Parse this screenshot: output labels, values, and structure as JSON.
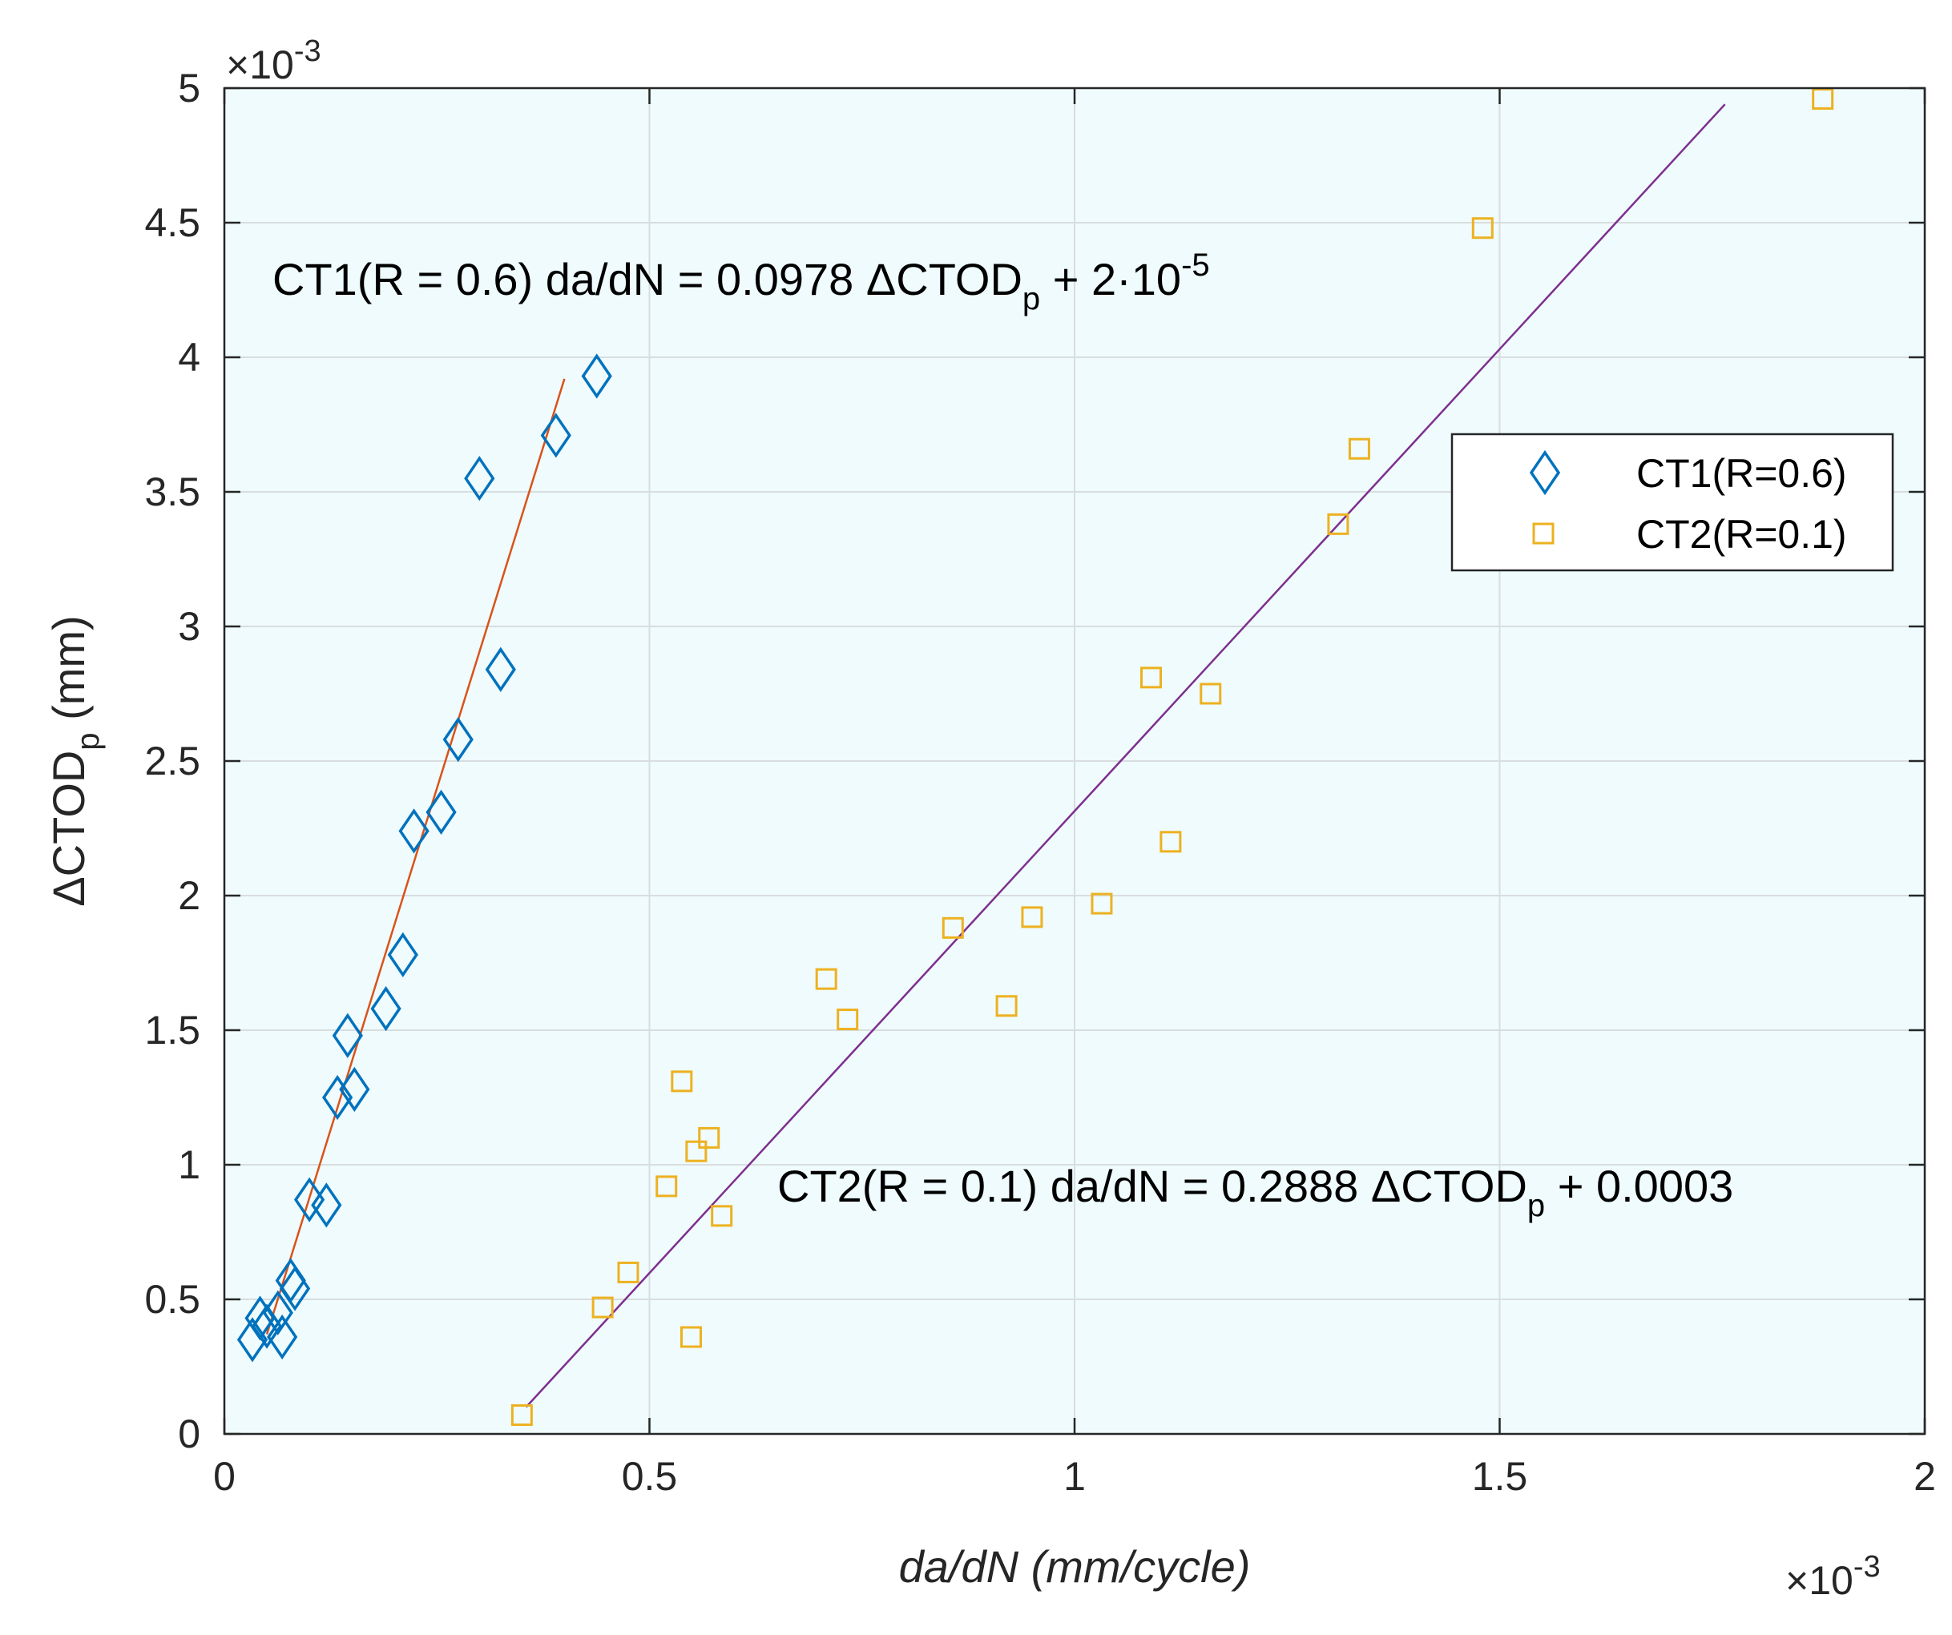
{
  "chart_data": {
    "type": "scatter",
    "title": "",
    "xlabel": "da/dN (mm/cycle)",
    "ylabel": "ΔCTOD",
    "ylabel_sub": "p",
    "ylabel_unit": " (mm)",
    "x_multiplier": "×10",
    "x_multiplier_exp": "-3",
    "y_multiplier": "×10",
    "y_multiplier_exp": "-3",
    "xlim": [
      0,
      2
    ],
    "ylim": [
      0,
      5
    ],
    "xticks": [
      0,
      0.5,
      1,
      1.5,
      2
    ],
    "xtick_labels": [
      "0",
      "0.5",
      "1",
      "1.5",
      "2"
    ],
    "yticks": [
      0,
      0.5,
      1,
      1.5,
      2,
      2.5,
      3,
      3.5,
      4,
      4.5,
      5
    ],
    "ytick_labels": [
      "0",
      "0.5",
      "1",
      "1.5",
      "2",
      "2.5",
      "3",
      "3.5",
      "4",
      "4.5",
      "5"
    ],
    "grid": true,
    "legend_position": "top-right",
    "colors": {
      "background": "#effbfd",
      "ct1": "#0072bd",
      "ct2": "#edb120",
      "fit1": "#d95319",
      "fit2": "#7e2f8e",
      "grid": "#d9dde0",
      "axis": "#262626"
    },
    "series": [
      {
        "name": "CT1(R=0.6)",
        "marker": "diamond",
        "x": [
          0.033,
          0.042,
          0.05,
          0.063,
          0.068,
          0.078,
          0.083,
          0.1,
          0.12,
          0.133,
          0.145,
          0.153,
          0.19,
          0.21,
          0.223,
          0.255,
          0.275,
          0.3,
          0.325,
          0.39,
          0.438
        ],
        "y": [
          0.35,
          0.43,
          0.4,
          0.45,
          0.36,
          0.57,
          0.54,
          0.87,
          0.85,
          1.25,
          1.48,
          1.28,
          1.58,
          1.78,
          2.24,
          2.31,
          2.58,
          3.55,
          2.84,
          3.71,
          3.93
        ]
      },
      {
        "name": "CT2(R=0.1)",
        "marker": "square",
        "x": [
          0.35,
          0.445,
          0.475,
          0.52,
          0.538,
          0.549,
          0.555,
          0.57,
          0.585,
          0.708,
          0.733,
          0.857,
          0.92,
          0.95,
          1.032,
          1.09,
          1.113,
          1.16,
          1.31,
          1.335,
          1.48,
          1.88
        ],
        "y": [
          0.07,
          0.47,
          0.6,
          0.92,
          1.31,
          0.36,
          1.05,
          1.1,
          0.81,
          1.69,
          1.54,
          1.88,
          1.59,
          1.92,
          1.97,
          2.81,
          2.2,
          2.75,
          3.38,
          3.66,
          4.48,
          4.96
        ]
      }
    ],
    "fits": [
      {
        "name": "CT1 fit",
        "x": [
          0.05,
          0.4
        ],
        "y": [
          0.37,
          3.92
        ],
        "equation_prefix": "CT1(R = 0.6) da/dN = 0.0978 ΔCTOD",
        "equation_sub": "p",
        "equation_mid": " + 2·10",
        "equation_sup": "-5",
        "equation_suffix": ""
      },
      {
        "name": "CT2 fit",
        "x": [
          0.355,
          1.765
        ],
        "y": [
          0.1,
          4.94
        ],
        "equation_prefix": "CT2(R = 0.1) da/dN = 0.2888 ΔCTOD",
        "equation_sub": "p",
        "equation_mid": " + 0.0003",
        "equation_sup": "",
        "equation_suffix": ""
      }
    ]
  }
}
